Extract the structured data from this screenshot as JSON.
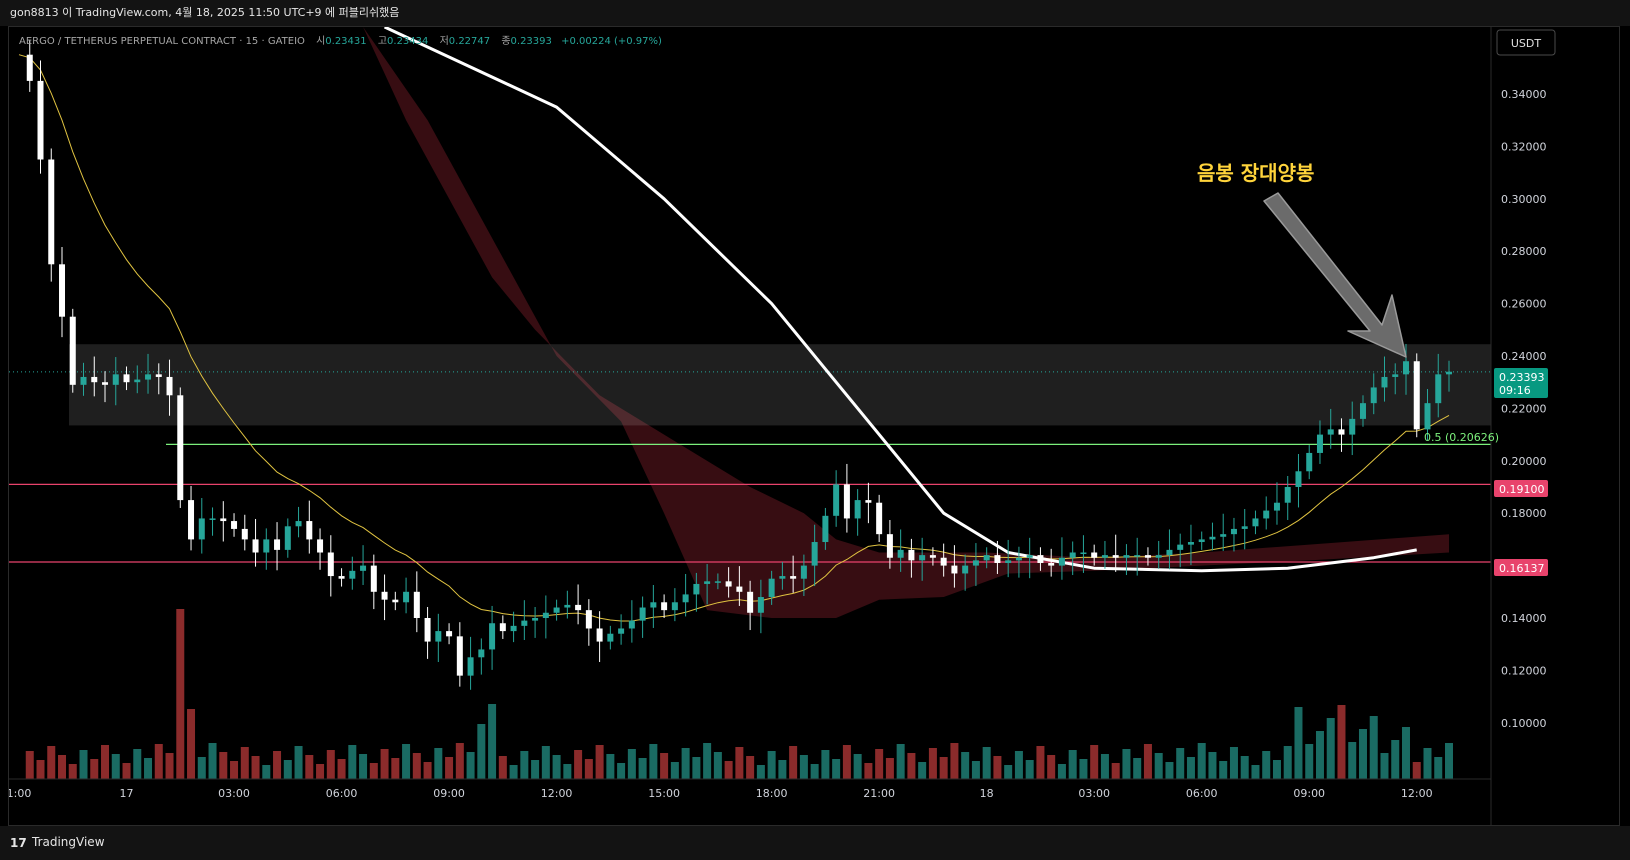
{
  "header": {
    "publish_line": "gon8813 이 TradingView.com, 4월 18, 2025 11:50 UTC+9 에 퍼블리쉬했음"
  },
  "legend": {
    "symbol": "AERGO / TETHERUS PERPETUAL CONTRACT · 15 · GATEIO",
    "open_label": "시",
    "open": "0.23431",
    "high_label": "고",
    "high": "0.23434",
    "low_label": "저",
    "low": "0.22747",
    "close_label": "종",
    "close": "0.23393",
    "change": "+0.00224 (+0.97%)"
  },
  "currency_button": "USDT",
  "annotation": {
    "text": "음봉 장대양봉"
  },
  "fib_label": "0.5 (0.20626)",
  "price_badges": {
    "last": "0.23393",
    "countdown": "09:16",
    "level_1": "0.19100",
    "level_2": "0.16137"
  },
  "footer": {
    "brand": "TradingView",
    "logo": "17"
  },
  "colors": {
    "up": "#26a69a",
    "down": "#ffffff",
    "ma_yellow": "#e0c341",
    "ma_white": "#ffffff",
    "level_red": "#e8436c",
    "fib_green": "#7cf07c",
    "cloud": "#4a1218",
    "volume_up": "#1a6b63",
    "volume_down": "#8b2b2b"
  },
  "chart_data": {
    "type": "candlestick",
    "y_axis": {
      "min": 0.08,
      "max": 0.36,
      "ticks": [
        0.34,
        0.32,
        0.3,
        0.28,
        0.26,
        0.24,
        0.22,
        0.2,
        0.18,
        0.16,
        0.14,
        0.12,
        0.1
      ]
    },
    "x_axis": {
      "ticks": [
        {
          "label": "1:00",
          "t": 0
        },
        {
          "label": "17",
          "t": 10
        },
        {
          "label": "03:00",
          "t": 20
        },
        {
          "label": "06:00",
          "t": 30
        },
        {
          "label": "09:00",
          "t": 40
        },
        {
          "label": "12:00",
          "t": 50
        },
        {
          "label": "15:00",
          "t": 60
        },
        {
          "label": "18:00",
          "t": 70
        },
        {
          "label": "21:00",
          "t": 80
        },
        {
          "label": "18",
          "t": 90
        },
        {
          "label": "03:00",
          "t": 100
        },
        {
          "label": "06:00",
          "t": 110
        },
        {
          "label": "09:00",
          "t": 120
        },
        {
          "label": "12:00",
          "t": 130
        }
      ]
    },
    "levels": [
      {
        "name": "resistance-1",
        "value": 0.191
      },
      {
        "name": "support-1",
        "value": 0.16137
      }
    ],
    "fib_level": 0.20626,
    "last_price": 0.23393,
    "zone": {
      "top": 0.2445,
      "bottom": 0.2135
    },
    "close_path": [
      [
        0,
        0.355
      ],
      [
        1,
        0.345
      ],
      [
        2,
        0.315
      ],
      [
        3,
        0.275
      ],
      [
        4,
        0.255
      ],
      [
        5,
        0.229
      ],
      [
        6,
        0.232
      ],
      [
        7,
        0.23
      ],
      [
        8,
        0.229
      ],
      [
        9,
        0.233
      ],
      [
        10,
        0.23
      ],
      [
        11,
        0.231
      ],
      [
        12,
        0.233
      ],
      [
        13,
        0.232
      ],
      [
        14,
        0.225
      ],
      [
        15,
        0.185
      ],
      [
        16,
        0.17
      ],
      [
        17,
        0.178
      ],
      [
        18,
        0.178
      ],
      [
        19,
        0.177
      ],
      [
        20,
        0.174
      ],
      [
        21,
        0.17
      ],
      [
        22,
        0.165
      ],
      [
        23,
        0.17
      ],
      [
        24,
        0.166
      ],
      [
        25,
        0.175
      ],
      [
        26,
        0.177
      ],
      [
        27,
        0.17
      ],
      [
        28,
        0.165
      ],
      [
        29,
        0.156
      ],
      [
        30,
        0.155
      ],
      [
        31,
        0.158
      ],
      [
        32,
        0.16
      ],
      [
        33,
        0.15
      ],
      [
        34,
        0.147
      ],
      [
        35,
        0.146
      ],
      [
        36,
        0.15
      ],
      [
        37,
        0.14
      ],
      [
        38,
        0.131
      ],
      [
        39,
        0.135
      ],
      [
        40,
        0.133
      ],
      [
        41,
        0.118
      ],
      [
        42,
        0.125
      ],
      [
        43,
        0.128
      ],
      [
        44,
        0.138
      ],
      [
        45,
        0.135
      ],
      [
        46,
        0.137
      ],
      [
        47,
        0.139
      ],
      [
        48,
        0.14
      ],
      [
        49,
        0.142
      ],
      [
        50,
        0.144
      ],
      [
        51,
        0.145
      ],
      [
        52,
        0.143
      ],
      [
        53,
        0.136
      ],
      [
        54,
        0.131
      ],
      [
        55,
        0.134
      ],
      [
        56,
        0.136
      ],
      [
        57,
        0.139
      ],
      [
        58,
        0.144
      ],
      [
        59,
        0.146
      ],
      [
        60,
        0.143
      ],
      [
        61,
        0.146
      ],
      [
        62,
        0.149
      ],
      [
        63,
        0.153
      ],
      [
        64,
        0.154
      ],
      [
        65,
        0.154
      ],
      [
        66,
        0.152
      ],
      [
        67,
        0.15
      ],
      [
        68,
        0.142
      ],
      [
        69,
        0.148
      ],
      [
        70,
        0.155
      ],
      [
        71,
        0.156
      ],
      [
        72,
        0.155
      ],
      [
        73,
        0.16
      ],
      [
        74,
        0.169
      ],
      [
        75,
        0.179
      ],
      [
        76,
        0.191
      ],
      [
        77,
        0.178
      ],
      [
        78,
        0.185
      ],
      [
        79,
        0.184
      ],
      [
        80,
        0.172
      ],
      [
        81,
        0.163
      ],
      [
        82,
        0.166
      ],
      [
        83,
        0.162
      ],
      [
        84,
        0.164
      ],
      [
        85,
        0.163
      ],
      [
        86,
        0.16
      ],
      [
        87,
        0.157
      ],
      [
        88,
        0.16
      ],
      [
        89,
        0.162
      ],
      [
        90,
        0.164
      ],
      [
        91,
        0.161
      ],
      [
        92,
        0.162
      ],
      [
        93,
        0.163
      ],
      [
        94,
        0.164
      ],
      [
        95,
        0.161
      ],
      [
        96,
        0.16
      ],
      [
        97,
        0.163
      ],
      [
        98,
        0.165
      ],
      [
        99,
        0.165
      ],
      [
        100,
        0.163
      ],
      [
        101,
        0.164
      ],
      [
        102,
        0.163
      ],
      [
        103,
        0.164
      ],
      [
        104,
        0.164
      ],
      [
        105,
        0.163
      ],
      [
        106,
        0.164
      ],
      [
        107,
        0.166
      ],
      [
        108,
        0.168
      ],
      [
        109,
        0.169
      ],
      [
        110,
        0.17
      ],
      [
        111,
        0.171
      ],
      [
        112,
        0.172
      ],
      [
        113,
        0.174
      ],
      [
        114,
        0.175
      ],
      [
        115,
        0.178
      ],
      [
        116,
        0.181
      ],
      [
        117,
        0.184
      ],
      [
        118,
        0.19
      ],
      [
        119,
        0.196
      ],
      [
        120,
        0.203
      ],
      [
        121,
        0.21
      ],
      [
        122,
        0.212
      ],
      [
        123,
        0.21
      ],
      [
        124,
        0.216
      ],
      [
        125,
        0.222
      ],
      [
        126,
        0.228
      ],
      [
        127,
        0.232
      ],
      [
        128,
        0.233
      ],
      [
        129,
        0.238
      ],
      [
        130,
        0.212
      ],
      [
        131,
        0.222
      ],
      [
        132,
        0.233
      ],
      [
        133,
        0.234
      ]
    ]
  }
}
